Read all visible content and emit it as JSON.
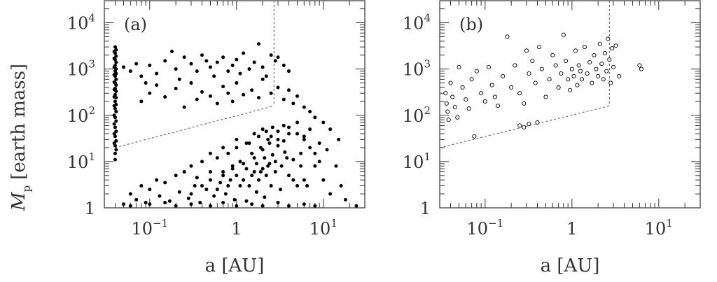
{
  "figure": {
    "shared_ylabel_main": "M",
    "shared_ylabel_sub": "p",
    "shared_ylabel_rest": "[earth mass]"
  },
  "chart_data": [
    {
      "type": "scatter",
      "panel_label": "(a)",
      "marker": "filled-circle",
      "xlabel": "a [AU]",
      "xscale": "log",
      "yscale": "log",
      "xlim": [
        0.03,
        30
      ],
      "ylim": [
        1,
        30000
      ],
      "xticks": [
        {
          "value": 0.1,
          "base": "10",
          "exp": "−1"
        },
        {
          "value": 1,
          "base": "1",
          "exp": ""
        },
        {
          "value": 10,
          "base": "10",
          "exp": "1"
        }
      ],
      "yticks": [
        {
          "value": 1,
          "base": "1",
          "exp": ""
        },
        {
          "value": 10,
          "base": "10",
          "exp": "1"
        },
        {
          "value": 100,
          "base": "10",
          "exp": "2"
        },
        {
          "value": 1000,
          "base": "10",
          "exp": "3"
        },
        {
          "value": 10000,
          "base": "10",
          "exp": "4"
        }
      ],
      "vertical_line_x": 2.7,
      "dotted_line": [
        [
          0.04,
          20
        ],
        [
          2.7,
          160
        ]
      ],
      "points": [
        [
          0.04,
          3000
        ],
        [
          0.04,
          2200
        ],
        [
          0.04,
          1600
        ],
        [
          0.04,
          1200
        ],
        [
          0.04,
          900
        ],
        [
          0.04,
          700
        ],
        [
          0.04,
          500
        ],
        [
          0.04,
          380
        ],
        [
          0.04,
          280
        ],
        [
          0.04,
          200
        ],
        [
          0.04,
          140
        ],
        [
          0.04,
          90
        ],
        [
          0.04,
          55
        ],
        [
          0.04,
          35
        ],
        [
          0.04,
          22
        ],
        [
          0.04,
          15
        ],
        [
          0.04,
          11
        ],
        [
          0.041,
          2600
        ],
        [
          0.041,
          1900
        ],
        [
          0.041,
          1400
        ],
        [
          0.041,
          1000
        ],
        [
          0.041,
          800
        ],
        [
          0.041,
          600
        ],
        [
          0.041,
          450
        ],
        [
          0.041,
          330
        ],
        [
          0.041,
          240
        ],
        [
          0.041,
          170
        ],
        [
          0.041,
          120
        ],
        [
          0.041,
          75
        ],
        [
          0.041,
          45
        ],
        [
          0.041,
          28
        ],
        [
          0.041,
          18
        ],
        [
          0.039,
          2400
        ],
        [
          0.039,
          1700
        ],
        [
          0.039,
          1100
        ],
        [
          0.039,
          750
        ],
        [
          0.039,
          520
        ],
        [
          0.039,
          360
        ],
        [
          0.039,
          250
        ],
        [
          0.039,
          160
        ],
        [
          0.039,
          100
        ],
        [
          0.039,
          65
        ],
        [
          0.039,
          40
        ],
        [
          0.039,
          25
        ],
        [
          0.05,
          1100
        ],
        [
          0.06,
          900
        ],
        [
          0.07,
          1300
        ],
        [
          0.08,
          700
        ],
        [
          0.09,
          500
        ],
        [
          0.1,
          1200
        ],
        [
          0.12,
          800
        ],
        [
          0.15,
          1500
        ],
        [
          0.18,
          2400
        ],
        [
          0.2,
          1000
        ],
        [
          0.22,
          600
        ],
        [
          0.25,
          1800
        ],
        [
          0.3,
          1300
        ],
        [
          0.35,
          900
        ],
        [
          0.4,
          2000
        ],
        [
          0.45,
          1500
        ],
        [
          0.5,
          1100
        ],
        [
          0.55,
          700
        ],
        [
          0.6,
          1400
        ],
        [
          0.7,
          1800
        ],
        [
          0.8,
          900
        ],
        [
          0.9,
          1200
        ],
        [
          1.0,
          1600
        ],
        [
          1.1,
          800
        ],
        [
          1.2,
          2200
        ],
        [
          1.4,
          1000
        ],
        [
          1.6,
          1400
        ],
        [
          1.8,
          3500
        ],
        [
          2.0,
          1100
        ],
        [
          2.2,
          700
        ],
        [
          2.5,
          2000
        ],
        [
          2.8,
          1500
        ],
        [
          3.0,
          1800
        ],
        [
          3.5,
          1200
        ],
        [
          4.0,
          900
        ],
        [
          0.08,
          200
        ],
        [
          0.1,
          300
        ],
        [
          0.12,
          450
        ],
        [
          0.15,
          250
        ],
        [
          0.2,
          380
        ],
        [
          0.25,
          150
        ],
        [
          0.3,
          500
        ],
        [
          0.35,
          220
        ],
        [
          0.4,
          320
        ],
        [
          0.5,
          260
        ],
        [
          0.6,
          180
        ],
        [
          0.7,
          420
        ],
        [
          0.8,
          300
        ],
        [
          0.9,
          200
        ],
        [
          1.0,
          500
        ],
        [
          1.2,
          280
        ],
        [
          1.5,
          350
        ],
        [
          1.8,
          240
        ],
        [
          2.0,
          600
        ],
        [
          2.5,
          300
        ],
        [
          3.0,
          400
        ],
        [
          3.5,
          220
        ],
        [
          4.0,
          350
        ],
        [
          4.5,
          180
        ],
        [
          5.0,
          260
        ],
        [
          6.0,
          150
        ],
        [
          7.0,
          120
        ],
        [
          8.0,
          90
        ],
        [
          10,
          70
        ],
        [
          12,
          50
        ],
        [
          15,
          30
        ],
        [
          0.05,
          1.2
        ],
        [
          0.06,
          2
        ],
        [
          0.07,
          1.5
        ],
        [
          0.08,
          3
        ],
        [
          0.09,
          1.3
        ],
        [
          0.1,
          2.5
        ],
        [
          0.12,
          4
        ],
        [
          0.13,
          1.8
        ],
        [
          0.15,
          3.5
        ],
        [
          0.17,
          1.4
        ],
        [
          0.2,
          5
        ],
        [
          0.22,
          2.2
        ],
        [
          0.25,
          6
        ],
        [
          0.28,
          1.6
        ],
        [
          0.3,
          8
        ],
        [
          0.33,
          3
        ],
        [
          0.35,
          4.5
        ],
        [
          0.38,
          1.3
        ],
        [
          0.4,
          10
        ],
        [
          0.45,
          2.5
        ],
        [
          0.5,
          6
        ],
        [
          0.55,
          1.8
        ],
        [
          0.6,
          12
        ],
        [
          0.65,
          3.5
        ],
        [
          0.7,
          5
        ],
        [
          0.75,
          2
        ],
        [
          0.8,
          15
        ],
        [
          0.85,
          4
        ],
        [
          0.9,
          7
        ],
        [
          0.95,
          1.5
        ],
        [
          1.0,
          20
        ],
        [
          1.1,
          3
        ],
        [
          1.2,
          9
        ],
        [
          1.3,
          1.4
        ],
        [
          1.4,
          25
        ],
        [
          1.5,
          5
        ],
        [
          1.6,
          12
        ],
        [
          1.7,
          2.2
        ],
        [
          1.8,
          35
        ],
        [
          1.9,
          6
        ],
        [
          2.0,
          18
        ],
        [
          2.1,
          1.7
        ],
        [
          2.2,
          45
        ],
        [
          2.3,
          8
        ],
        [
          2.4,
          25
        ],
        [
          2.5,
          3
        ],
        [
          2.6,
          55
        ],
        [
          2.8,
          10
        ],
        [
          3.0,
          30
        ],
        [
          3.2,
          2.5
        ],
        [
          3.5,
          60
        ],
        [
          3.8,
          12
        ],
        [
          4.0,
          40
        ],
        [
          4.5,
          4
        ],
        [
          5.0,
          70
        ],
        [
          5.5,
          15
        ],
        [
          6.0,
          35
        ],
        [
          6.5,
          3
        ],
        [
          7.0,
          50
        ],
        [
          8.0,
          8
        ],
        [
          9.0,
          25
        ],
        [
          10,
          4
        ],
        [
          11,
          18
        ],
        [
          12,
          2
        ],
        [
          14,
          8
        ],
        [
          16,
          3
        ],
        [
          18,
          1.5
        ],
        [
          24,
          1.1
        ],
        [
          0.06,
          1.1
        ],
        [
          0.1,
          1.2
        ],
        [
          0.15,
          1.3
        ],
        [
          0.2,
          1.1
        ],
        [
          0.3,
          1.2
        ],
        [
          0.5,
          1.1
        ],
        [
          0.7,
          1.3
        ],
        [
          1.0,
          1.1
        ],
        [
          1.5,
          1.2
        ],
        [
          2.0,
          1.1
        ],
        [
          3.0,
          1.3
        ],
        [
          4.0,
          1.1
        ],
        [
          6.0,
          1.2
        ],
        [
          8.0,
          1.1
        ],
        [
          0.3,
          2
        ],
        [
          0.4,
          3
        ],
        [
          0.5,
          4
        ],
        [
          0.6,
          2.5
        ],
        [
          0.7,
          6
        ],
        [
          0.8,
          3
        ],
        [
          0.9,
          8
        ],
        [
          1.0,
          5
        ],
        [
          1.1,
          10
        ],
        [
          1.2,
          4
        ],
        [
          1.3,
          7
        ],
        [
          1.4,
          3
        ],
        [
          1.5,
          15
        ],
        [
          1.6,
          6
        ],
        [
          1.7,
          9
        ],
        [
          1.8,
          4
        ],
        [
          1.9,
          20
        ],
        [
          2.0,
          7
        ],
        [
          2.1,
          12
        ],
        [
          2.2,
          5
        ],
        [
          2.3,
          30
        ],
        [
          2.4,
          9
        ],
        [
          2.6,
          14
        ],
        [
          2.8,
          6
        ],
        [
          3.0,
          22
        ],
        [
          3.3,
          8
        ],
        [
          3.6,
          16
        ],
        [
          4.0,
          5
        ],
        [
          4.5,
          11
        ],
        [
          5.0,
          3
        ],
        [
          5.5,
          8
        ],
        [
          6.0,
          4
        ],
        [
          0.5,
          15
        ],
        [
          0.7,
          20
        ],
        [
          1.0,
          30
        ],
        [
          1.3,
          25
        ],
        [
          1.6,
          40
        ],
        [
          2.0,
          50
        ],
        [
          2.5,
          35
        ],
        [
          3.0,
          45
        ],
        [
          3.5,
          28
        ],
        [
          4.0,
          55
        ],
        [
          5.0,
          40
        ],
        [
          6.0,
          30
        ],
        [
          7.0,
          20
        ],
        [
          8.0,
          15
        ],
        [
          9.0,
          10
        ]
      ]
    },
    {
      "type": "scatter",
      "panel_label": "(b)",
      "marker": "open-circle",
      "xlabel": "a [AU]",
      "xscale": "log",
      "yscale": "log",
      "xlim": [
        0.03,
        30
      ],
      "ylim": [
        1,
        30000
      ],
      "xticks": [
        {
          "value": 0.1,
          "base": "10",
          "exp": "−1"
        },
        {
          "value": 1,
          "base": "1",
          "exp": ""
        },
        {
          "value": 10,
          "base": "10",
          "exp": "1"
        }
      ],
      "yticks": [
        {
          "value": 1,
          "base": "1",
          "exp": ""
        },
        {
          "value": 10,
          "base": "10",
          "exp": "1"
        },
        {
          "value": 100,
          "base": "10",
          "exp": "2"
        },
        {
          "value": 1000,
          "base": "10",
          "exp": "3"
        },
        {
          "value": 10000,
          "base": "10",
          "exp": "4"
        }
      ],
      "vertical_line_x": 2.7,
      "dotted_line": [
        [
          0.03,
          20
        ],
        [
          2.7,
          160
        ]
      ],
      "points": [
        [
          0.035,
          300
        ],
        [
          0.036,
          180
        ],
        [
          0.037,
          120
        ],
        [
          0.038,
          80
        ],
        [
          0.04,
          500
        ],
        [
          0.042,
          250
        ],
        [
          0.045,
          150
        ],
        [
          0.048,
          90
        ],
        [
          0.05,
          1100
        ],
        [
          0.055,
          400
        ],
        [
          0.06,
          220
        ],
        [
          0.065,
          140
        ],
        [
          0.07,
          600
        ],
        [
          0.075,
          35
        ],
        [
          0.08,
          900
        ],
        [
          0.09,
          300
        ],
        [
          0.1,
          200
        ],
        [
          0.11,
          1100
        ],
        [
          0.12,
          450
        ],
        [
          0.13,
          250
        ],
        [
          0.14,
          160
        ],
        [
          0.16,
          700
        ],
        [
          0.18,
          5000
        ],
        [
          0.2,
          400
        ],
        [
          0.22,
          1200
        ],
        [
          0.25,
          300
        ],
        [
          0.28,
          180
        ],
        [
          0.3,
          2500
        ],
        [
          0.32,
          800
        ],
        [
          0.35,
          1500
        ],
        [
          0.38,
          500
        ],
        [
          0.4,
          70
        ],
        [
          0.42,
          3000
        ],
        [
          0.45,
          1000
        ],
        [
          0.5,
          250
        ],
        [
          0.55,
          600
        ],
        [
          0.6,
          2000
        ],
        [
          0.65,
          1200
        ],
        [
          0.7,
          400
        ],
        [
          0.75,
          800
        ],
        [
          0.8,
          5500
        ],
        [
          0.85,
          1500
        ],
        [
          0.9,
          600
        ],
        [
          0.95,
          350
        ],
        [
          1.0,
          1000
        ],
        [
          1.05,
          700
        ],
        [
          1.1,
          2500
        ],
        [
          1.15,
          450
        ],
        [
          1.2,
          1200
        ],
        [
          1.25,
          900
        ],
        [
          1.3,
          600
        ],
        [
          1.4,
          3000
        ],
        [
          1.5,
          800
        ],
        [
          1.6,
          1400
        ],
        [
          1.7,
          500
        ],
        [
          1.8,
          2000
        ],
        [
          1.9,
          1000
        ],
        [
          2.0,
          700
        ],
        [
          2.1,
          3500
        ],
        [
          2.2,
          1300
        ],
        [
          2.3,
          600
        ],
        [
          2.4,
          2200
        ],
        [
          2.5,
          900
        ],
        [
          2.6,
          4500
        ],
        [
          2.7,
          1600
        ],
        [
          2.8,
          500
        ],
        [
          2.9,
          2800
        ],
        [
          3.0,
          1100
        ],
        [
          3.2,
          3200
        ],
        [
          3.5,
          700
        ],
        [
          6.0,
          1200
        ],
        [
          6.3,
          1000
        ],
        [
          0.25,
          60
        ],
        [
          0.28,
          55
        ],
        [
          0.32,
          65
        ]
      ]
    }
  ]
}
